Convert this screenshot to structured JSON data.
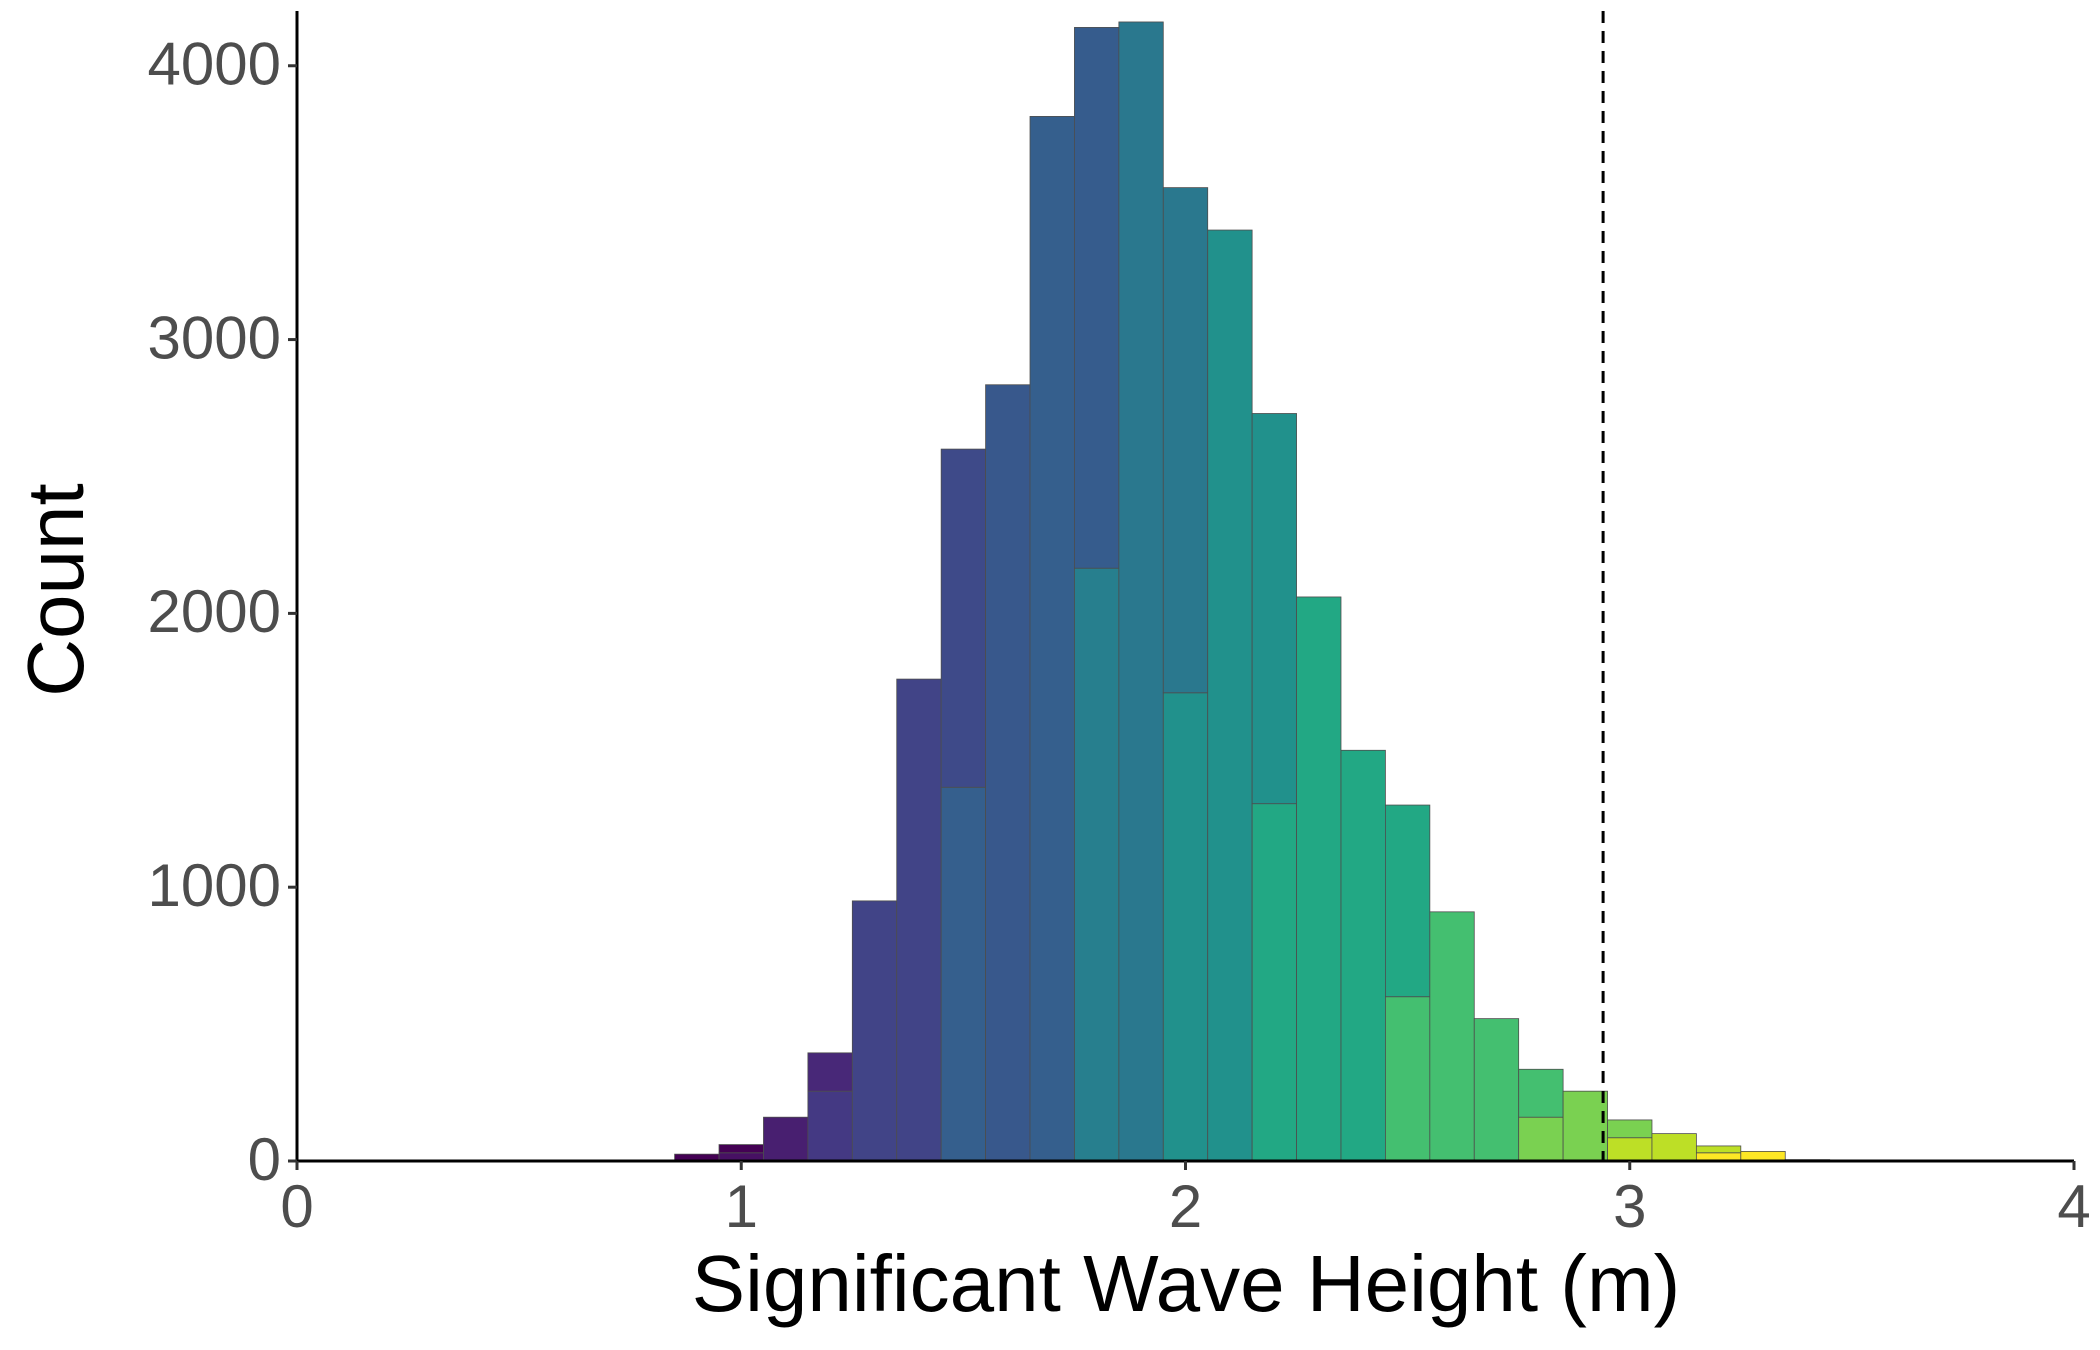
{
  "chart_data": {
    "type": "histogram",
    "x_label": "Significant Wave Height (m)",
    "y_label": "Count",
    "bins": [
      0.85,
      0.95,
      1.05,
      1.15,
      1.25,
      1.35,
      1.45,
      1.55,
      1.65,
      1.75,
      1.85,
      1.95,
      2.05,
      2.15,
      2.25,
      2.35,
      2.45,
      2.55,
      2.65,
      2.75,
      2.85,
      2.95,
      3.05,
      3.15,
      3.25,
      3.35,
      3.45
    ],
    "series": [
      {
        "values": [
          25,
          30,
          160,
          255,
          950,
          1760,
          1365,
          2835,
          3815,
          2165,
          4160,
          1710,
          3400,
          1305,
          2060,
          1500,
          600,
          910,
          520,
          160,
          255,
          85,
          100,
          30,
          35,
          5
        ],
        "colors": [
          "#440154",
          "#471063",
          "#481f70",
          "#443983",
          "#414487",
          "#414487",
          "#355f8d",
          "#38588c",
          "#355f8d",
          "#277f8e",
          "#2a788e",
          "#21918c",
          "#21918c",
          "#22a884",
          "#22a884",
          "#22a884",
          "#44bf70",
          "#44bf70",
          "#44bf70",
          "#7ad151",
          "#7ad151",
          "#bddf26",
          "#bddf26",
          "#fde725",
          "#fde725",
          "#fde725"
        ]
      },
      {
        "values": [
          null,
          30,
          null,
          140,
          null,
          null,
          1235,
          null,
          null,
          1975,
          null,
          1845,
          null,
          1425,
          null,
          null,
          700,
          null,
          null,
          175,
          null,
          65,
          null,
          25,
          null,
          null
        ],
        "colors": [
          null,
          "#440154",
          null,
          "#482878",
          null,
          null,
          "#3e4a89",
          null,
          null,
          "#365c8d",
          null,
          "#2a788e",
          null,
          "#21918c",
          null,
          null,
          "#22a884",
          null,
          null,
          "#44bf70",
          null,
          "#7ad151",
          null,
          "#bddf26",
          null,
          null
        ]
      }
    ],
    "vline": 2.94,
    "xlim": [
      0,
      4
    ],
    "xticks": [
      0,
      1,
      2,
      3,
      4
    ],
    "ylim": [
      0,
      4200
    ],
    "yticks": [
      0,
      1000,
      2000,
      3000,
      4000
    ]
  }
}
